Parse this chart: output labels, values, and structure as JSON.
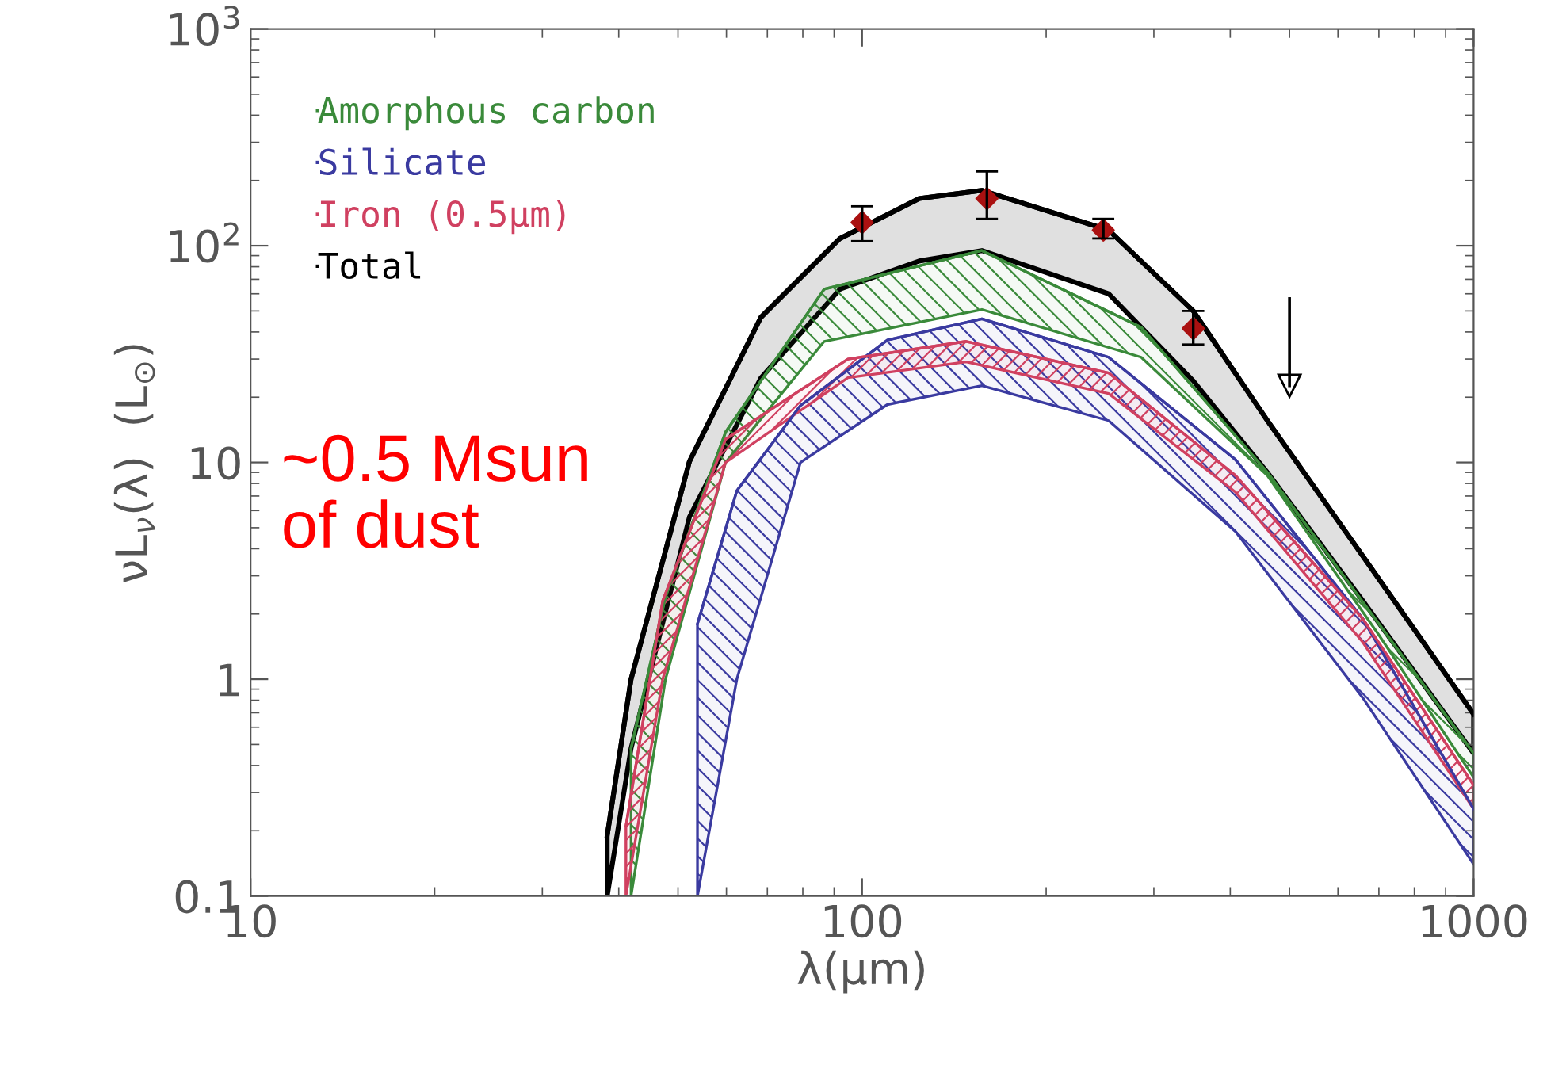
{
  "chart_data": {
    "type": "line",
    "xlabel": "λ(μm)",
    "ylabel": "νL$_{ν}$(λ)  (L$_{⊙}$)",
    "log": "xy",
    "xlim": [
      10,
      1000
    ],
    "xticks": [
      10,
      100,
      1000
    ],
    "ylim": [
      0.1,
      1000
    ],
    "yticks": [
      0.1,
      1,
      10,
      {
        "value": 100,
        "label": "10$^{2}$"
      },
      {
        "value": 1000,
        "label": "10$^{3}$"
      }
    ],
    "grid": false,
    "legend": "top left",
    "annotations": [
      "~0.5 Msun\nof dust"
    ],
    "series": [
      {
        "name": "Total",
        "color": "#000000",
        "x": [
          38.3,
          41.9,
          52.2,
          68.3,
          92,
          124,
          157,
          253,
          348,
          460,
          659,
          1000
        ],
        "values": [
          0.19,
          1.0,
          10.1,
          46.7,
          108,
          165,
          180,
          118,
          50,
          15.6,
          3.7,
          0.69
        ],
        "upper": [
          0.19,
          1.0,
          10.1,
          46.7,
          108,
          165,
          180,
          118,
          50,
          15.6,
          3.7,
          0.69
        ],
        "lower": [
          0.1,
          0.48,
          5.6,
          24.5,
          63,
          85,
          95,
          60,
          23.8,
          9,
          2.3,
          0.455
        ]
      },
      {
        "name": "Amorphous carbon",
        "color": "#3a8a3a",
        "x": [
          41.9,
          47.7,
          59.8,
          86.7,
          157,
          286,
          460,
          700,
          1000
        ],
        "values": [
          0.48,
          2.4,
          13.8,
          63,
          95,
          42,
          9,
          1.8,
          0.455
        ],
        "upper": [
          0.48,
          2.4,
          13.8,
          63,
          95,
          42,
          9,
          1.8,
          0.455
        ],
        "lower": [
          0.1,
          1.0,
          10,
          36.2,
          50.8,
          30.6,
          8.7,
          1.6,
          0.353
        ]
      },
      {
        "name": "Silicate",
        "color": "#3a3aa0",
        "x": [
          53.8,
          62.4,
          79.3,
          110,
          157,
          253,
          408,
          659,
          1000
        ],
        "values": [
          1.8,
          7.4,
          18.3,
          36.7,
          46,
          30.6,
          10.3,
          1.9,
          0.252
        ],
        "upper": [
          1.8,
          7.4,
          18.3,
          36.7,
          46,
          30.6,
          10.3,
          1.9,
          0.252
        ],
        "lower": [
          0.1,
          1.0,
          10,
          18.5,
          22.6,
          15.6,
          4.8,
          0.82,
          0.14
        ]
      },
      {
        "name": "Iron (0.5μm)",
        "color": "#d04060",
        "x": [
          41.1,
          47.2,
          59.8,
          94.8,
          148,
          253,
          408,
          659,
          1000
        ],
        "values": [
          0.21,
          2.3,
          12.8,
          30,
          36.2,
          25.9,
          8.7,
          1.9,
          0.325
        ],
        "upper": [
          0.21,
          2.3,
          12.8,
          30,
          36.2,
          25.9,
          8.7,
          1.9,
          0.325
        ],
        "lower": [
          0.1,
          1,
          10,
          24.6,
          29.1,
          20.8,
          7.3,
          1.48,
          0.252
        ]
      },
      {
        "color": "#aa1111",
        "type": "scatter",
        "marker": "diamond",
        "x": [
          100,
          160,
          248,
          348
        ],
        "values": [
          128,
          165,
          118,
          41.5
        ],
        "errors": [
          [
            105,
            152
          ],
          [
            133,
            220
          ],
          [
            108,
            133
          ],
          [
            35,
            50
          ]
        ]
      },
      {
        "color": "#000000",
        "type": "line",
        "marker": "triangle",
        "x": [
          500,
          500
        ],
        "values": [
          57,
          22.6
        ]
      }
    ]
  }
}
